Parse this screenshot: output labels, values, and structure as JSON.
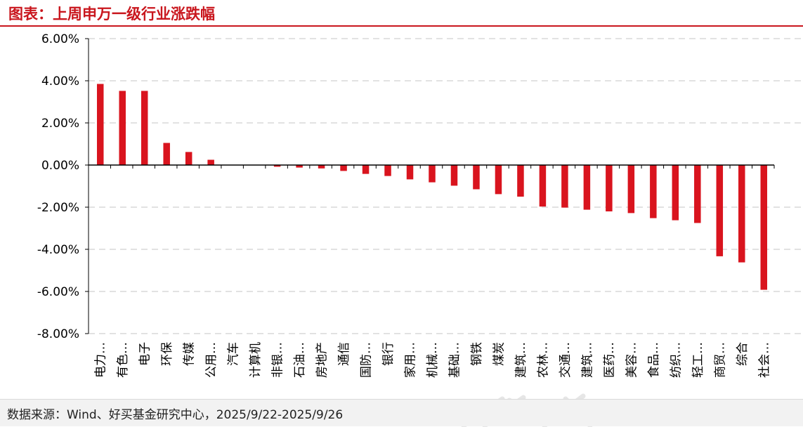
{
  "header": {
    "title": "图表：上周申万一级行业涨跌幅"
  },
  "footer": {
    "source": "数据来源：Wind、好买基金研究中心，2025/9/22-2025/9/26"
  },
  "colors": {
    "accent": "#c9161d",
    "bar": "#d9141e",
    "grid": "#d9d9d9",
    "axis": "#000000"
  },
  "chart_data": {
    "type": "bar",
    "title": "图表：上周申万一级行业涨跌幅",
    "xlabel": "",
    "ylabel": "",
    "ylim": [
      -8,
      6
    ],
    "yticks": [
      6,
      4,
      2,
      0,
      -2,
      -4,
      -6,
      -8
    ],
    "ytick_labels": [
      "6.00%",
      "4.00%",
      "2.00%",
      "0.00%",
      "-2.00%",
      "-4.00%",
      "-6.00%",
      "-8.00%"
    ],
    "grid": true,
    "legend": "none",
    "categories": [
      "电力…",
      "有色…",
      "电子",
      "环保",
      "传媒",
      "公用…",
      "汽车",
      "计算机",
      "非银…",
      "石油…",
      "房地产",
      "通信",
      "国防…",
      "银行",
      "家用…",
      "机械…",
      "基础…",
      "钢铁",
      "煤炭",
      "建筑…",
      "农林…",
      "交通…",
      "建筑…",
      "医药…",
      "美容…",
      "食品…",
      "纺织…",
      "轻工…",
      "商贸…",
      "综合",
      "社会…"
    ],
    "values": [
      3.85,
      3.52,
      3.52,
      1.05,
      0.62,
      0.25,
      0.0,
      0.0,
      -0.08,
      -0.12,
      -0.16,
      -0.28,
      -0.42,
      -0.52,
      -0.68,
      -0.82,
      -0.98,
      -1.15,
      -1.38,
      -1.5,
      -1.97,
      -2.02,
      -2.12,
      -2.2,
      -2.28,
      -2.52,
      -2.62,
      -2.75,
      -4.33,
      -4.62,
      -5.92
    ]
  }
}
